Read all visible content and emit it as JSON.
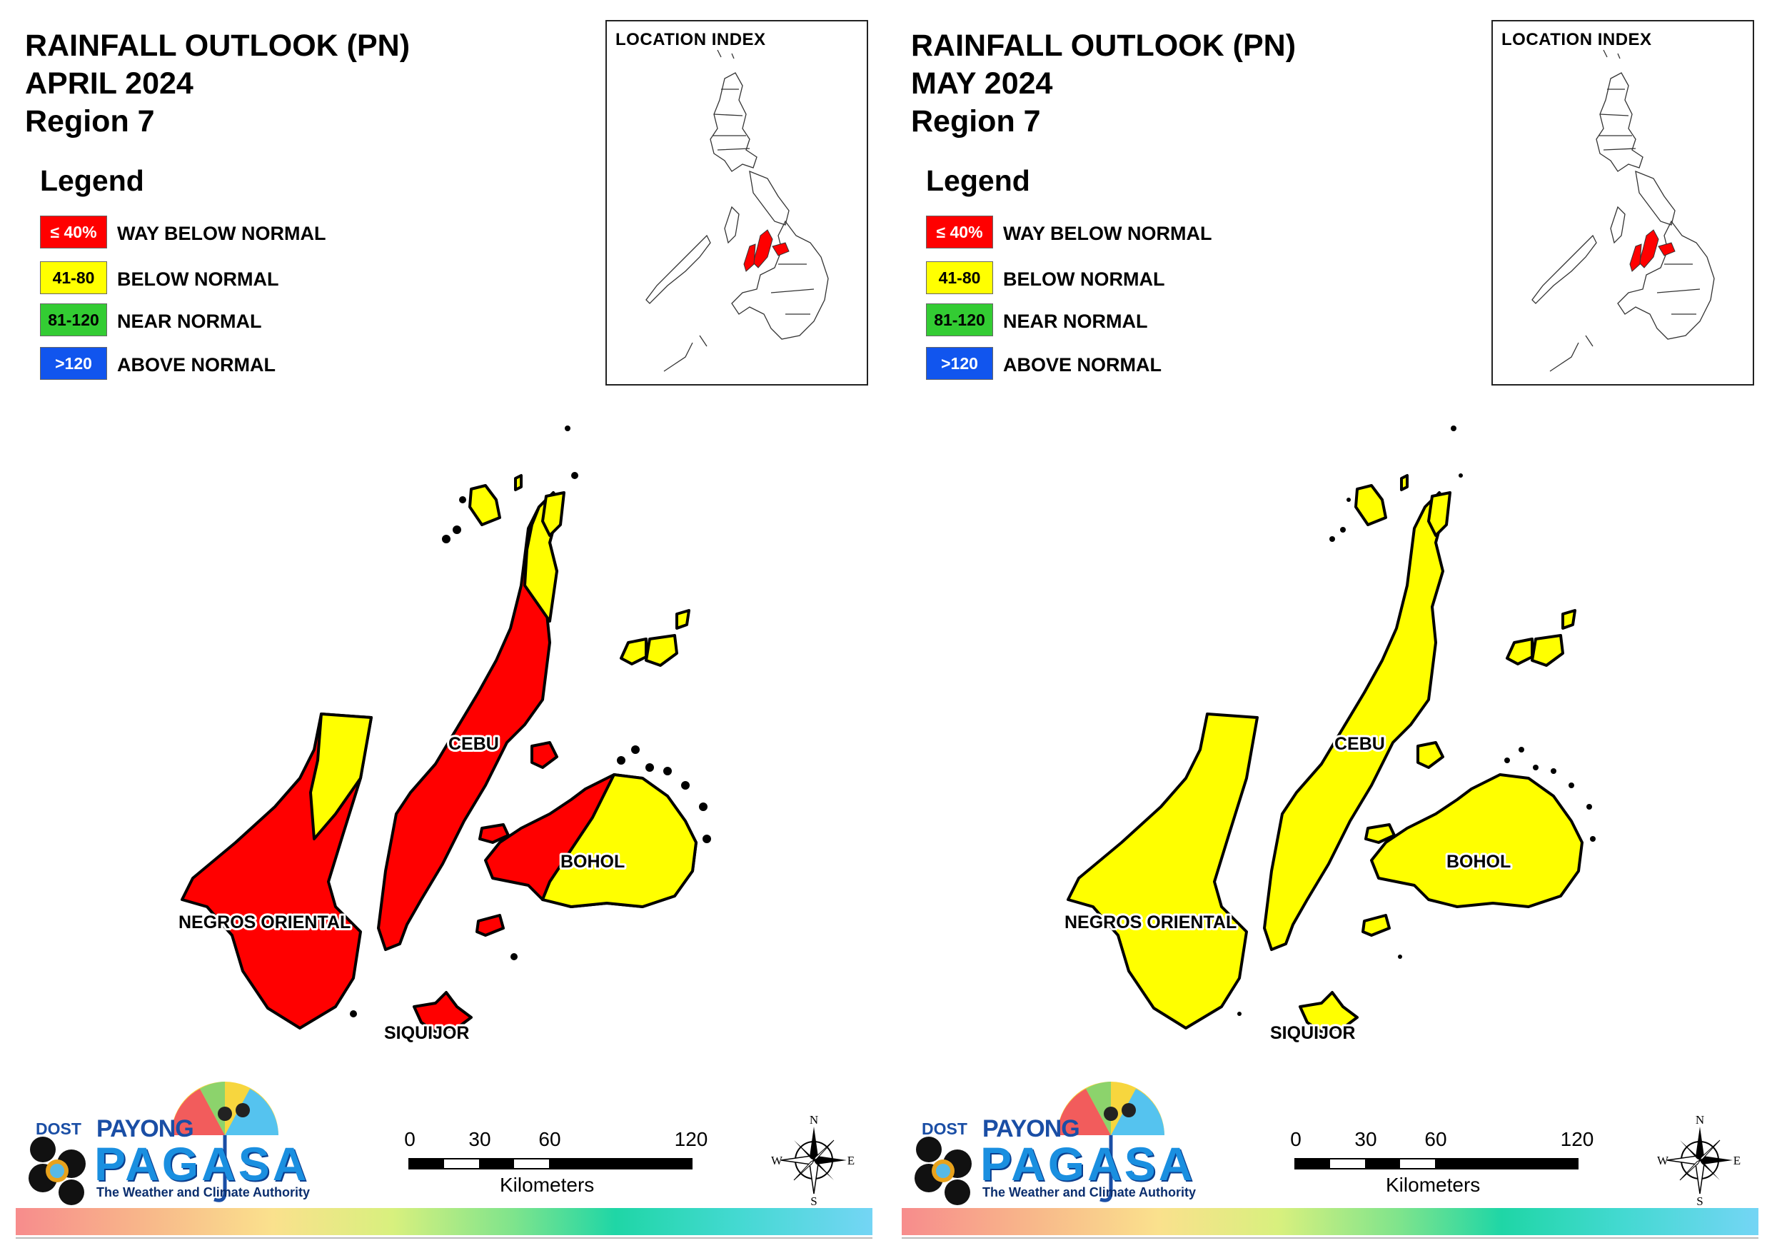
{
  "colors": {
    "way_below": "#ff0000",
    "below": "#ffff00",
    "near": "#33cc33",
    "above": "#1155ee"
  },
  "panels": [
    {
      "title_line1": "RAINFALL OUTLOOK (PN)",
      "title_line2": "APRIL 2024",
      "title_line3": "Region 7",
      "legend_title": "Legend",
      "legend": [
        {
          "swatch": "≤ 40%",
          "label": "WAY BELOW NORMAL",
          "color": "#ff0000"
        },
        {
          "swatch": "41-80",
          "label": "BELOW NORMAL",
          "color": "#ffff00"
        },
        {
          "swatch": "81-120",
          "label": "NEAR NORMAL",
          "color": "#33cc33"
        },
        {
          "swatch": ">120",
          "label": "ABOVE NORMAL",
          "color": "#1155ee"
        }
      ],
      "location_index_title": "LOCATION INDEX",
      "provinces": {
        "cebu": {
          "label": "CEBU",
          "category": "way_below_normal_mostly",
          "secondary": "below_normal_north_tip"
        },
        "negros_oriental": {
          "label": "NEGROS ORIENTAL",
          "category": "way_below_normal_mostly",
          "secondary": "below_normal_north"
        },
        "bohol": {
          "label": "BOHOL",
          "category": "way_below_normal_west",
          "secondary": "below_normal_east"
        },
        "siquijor": {
          "label": "SIQUIJOR",
          "category": "way_below_normal"
        }
      },
      "scale_ticks": [
        "0",
        "30",
        "60",
        "120"
      ],
      "scale_unit": "Kilometers",
      "compass": {
        "n": "N",
        "s": "S",
        "e": "E",
        "w": "W"
      },
      "logo": {
        "dost": "DOST",
        "payong": "PAYONG",
        "pagasa": "PAGASA",
        "tagline": "The Weather and Climate Authority"
      }
    },
    {
      "title_line1": "RAINFALL OUTLOOK (PN)",
      "title_line2": "MAY 2024",
      "title_line3": "Region 7",
      "legend_title": "Legend",
      "legend": [
        {
          "swatch": "≤ 40%",
          "label": "WAY BELOW NORMAL",
          "color": "#ff0000"
        },
        {
          "swatch": "41-80",
          "label": "BELOW NORMAL",
          "color": "#ffff00"
        },
        {
          "swatch": "81-120",
          "label": "NEAR NORMAL",
          "color": "#33cc33"
        },
        {
          "swatch": ">120",
          "label": "ABOVE NORMAL",
          "color": "#1155ee"
        }
      ],
      "location_index_title": "LOCATION INDEX",
      "provinces": {
        "cebu": {
          "label": "CEBU",
          "category": "below_normal"
        },
        "negros_oriental": {
          "label": "NEGROS ORIENTAL",
          "category": "below_normal"
        },
        "bohol": {
          "label": "BOHOL",
          "category": "below_normal"
        },
        "siquijor": {
          "label": "SIQUIJOR",
          "category": "below_normal"
        }
      },
      "scale_ticks": [
        "0",
        "30",
        "60",
        "120"
      ],
      "scale_unit": "Kilometers",
      "compass": {
        "n": "N",
        "s": "S",
        "e": "E",
        "w": "W"
      },
      "logo": {
        "dost": "DOST",
        "payong": "PAYONG",
        "pagasa": "PAGASA",
        "tagline": "The Weather and Climate Authority"
      }
    }
  ]
}
